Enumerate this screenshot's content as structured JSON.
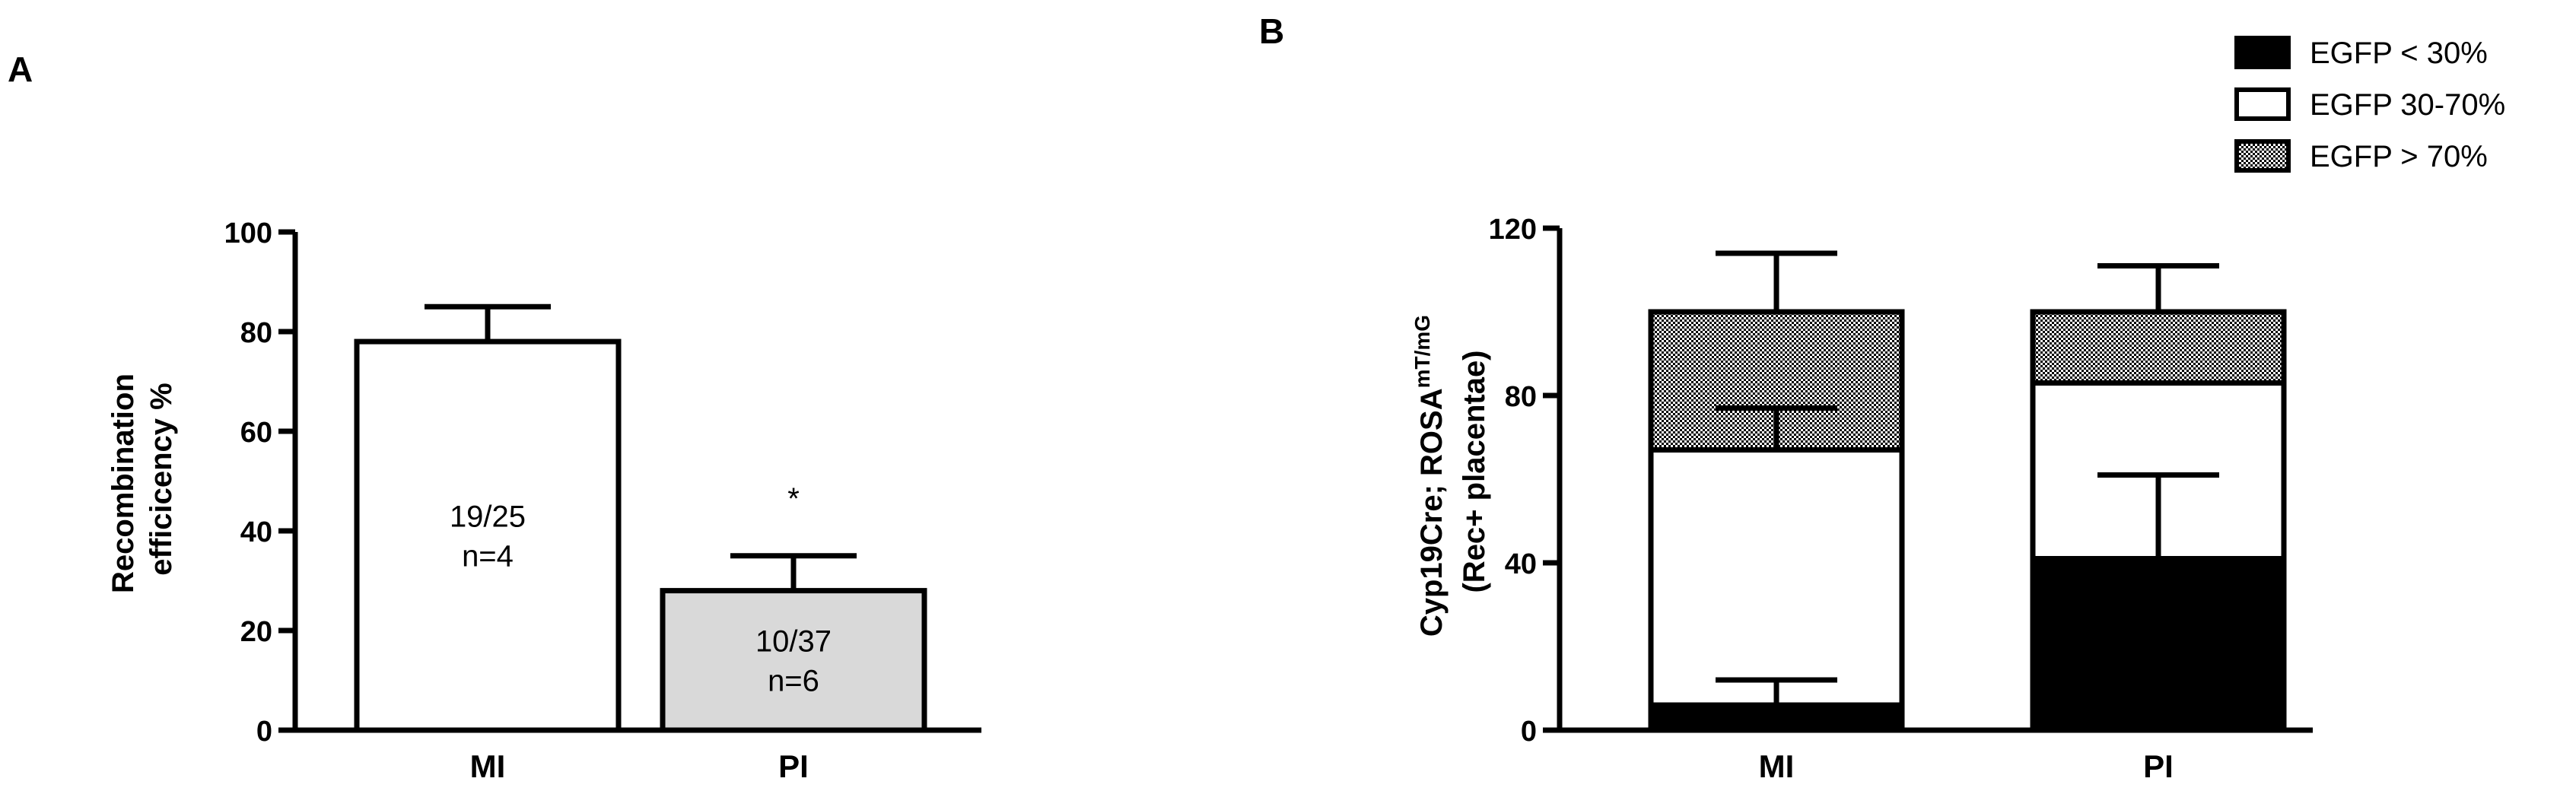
{
  "chart_data": [
    {
      "panel": "A",
      "type": "bar",
      "categories": [
        "MI",
        "PI"
      ],
      "values": [
        78,
        28
      ],
      "errors": [
        7,
        7
      ],
      "bar_colors": [
        "#ffffff",
        "#d9d9d9"
      ],
      "bar_labels": [
        [
          "19/25",
          "n=4"
        ],
        [
          "10/37",
          "n=6"
        ]
      ],
      "significance": [
        "",
        "*"
      ],
      "ylabel": [
        "Recombination",
        "efficicency %"
      ],
      "ylim": [
        0,
        100
      ],
      "yticks": [
        0,
        20,
        40,
        60,
        80,
        100
      ],
      "grid": false
    },
    {
      "panel": "B",
      "type": "bar",
      "stacked": true,
      "categories": [
        "MI",
        "PI"
      ],
      "series": [
        {
          "name": "EGFP < 30%",
          "values": [
            6,
            41
          ],
          "errors": [
            6,
            20
          ],
          "fill": "#000000"
        },
        {
          "name": "EGFP 30-70%",
          "values": [
            61,
            42
          ],
          "errors": [
            10,
            0
          ],
          "fill": "#ffffff"
        },
        {
          "name": "EGFP > 70%",
          "values": [
            33,
            17
          ],
          "errors": [
            14,
            11
          ],
          "fill": "pattern-checker"
        }
      ],
      "ylabel": {
        "line1_prefix": "Cyp19Cre; ROSA",
        "line1_sup": "mT/mG",
        "line2": "(Rec+ placentae)"
      },
      "ylim": [
        0,
        120
      ],
      "yticks": [
        0,
        40,
        80,
        120
      ],
      "legend_position": "top-right",
      "grid": false
    }
  ]
}
